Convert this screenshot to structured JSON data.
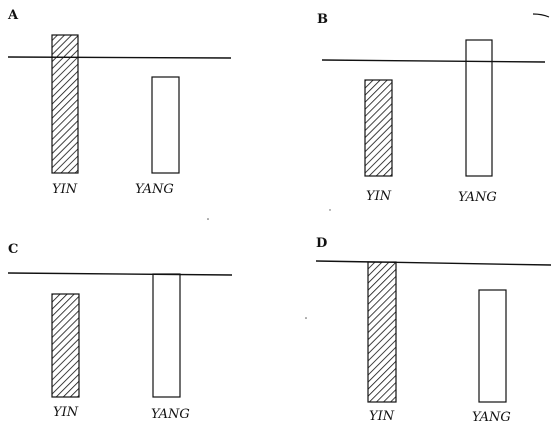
{
  "panels": [
    {
      "letter": "A",
      "bars": [
        {
          "label": "YIN",
          "style": "hatched"
        },
        {
          "label": "YANG",
          "style": "open"
        }
      ]
    },
    {
      "letter": "B",
      "bars": [
        {
          "label": "YIN",
          "style": "hatched"
        },
        {
          "label": "YANG",
          "style": "open"
        }
      ]
    },
    {
      "letter": "C",
      "bars": [
        {
          "label": "YIN",
          "style": "hatched"
        },
        {
          "label": "YANG",
          "style": "open"
        }
      ]
    },
    {
      "letter": "D",
      "bars": [
        {
          "label": "YIN",
          "style": "hatched"
        },
        {
          "label": "YANG",
          "style": "open"
        }
      ]
    }
  ],
  "colors": {
    "ink": "#111111",
    "background": "#ffffff"
  }
}
